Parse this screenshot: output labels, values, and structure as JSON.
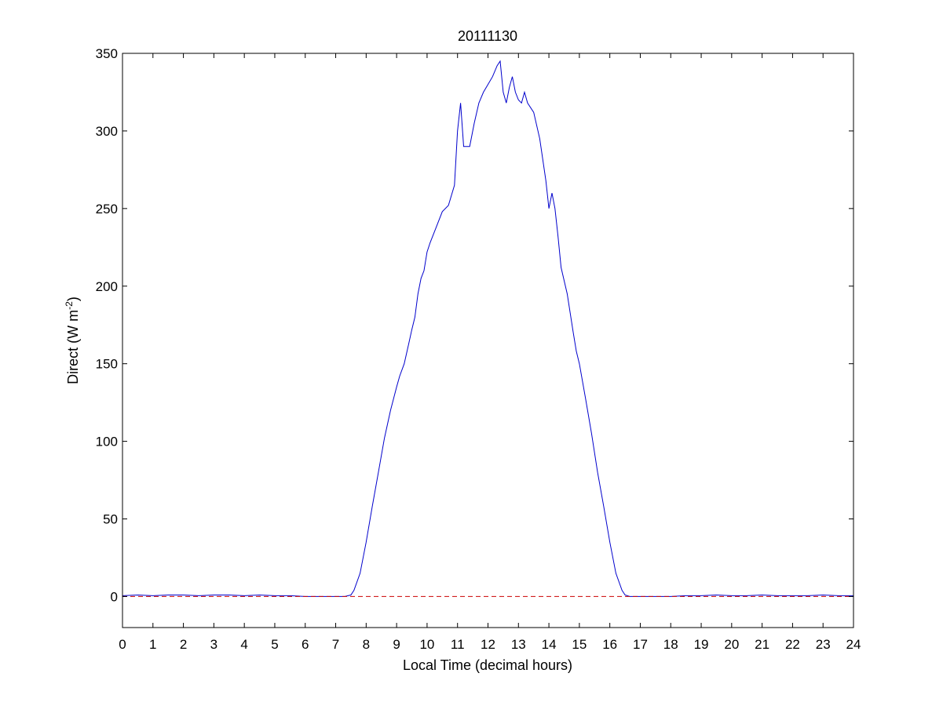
{
  "chart_data": {
    "type": "line",
    "title": "20111130",
    "xlabel": "Local Time (decimal hours)",
    "ylabel": {
      "text": "Direct (W m",
      "superscript": "-2",
      "suffix": ")"
    },
    "xlim": [
      0,
      24
    ],
    "ylim": [
      -20,
      350
    ],
    "xticks": [
      0,
      1,
      2,
      3,
      4,
      5,
      6,
      7,
      8,
      9,
      10,
      11,
      12,
      13,
      14,
      15,
      16,
      17,
      18,
      19,
      20,
      21,
      22,
      23,
      24
    ],
    "yticks": [
      0,
      50,
      100,
      150,
      200,
      250,
      300,
      350
    ],
    "grid": false,
    "legend": "none",
    "series": [
      {
        "color": "#0000cc",
        "line_style": "solid",
        "x": [
          0,
          0.5,
          1,
          1.5,
          2,
          2.5,
          3,
          3.5,
          4,
          4.5,
          5,
          5.5,
          6,
          6.5,
          7,
          7.3,
          7.5,
          7.6,
          7.8,
          8,
          8.2,
          8.4,
          8.6,
          8.8,
          9,
          9.1,
          9.25,
          9.4,
          9.5,
          9.6,
          9.7,
          9.8,
          9.9,
          10,
          10.1,
          10.3,
          10.5,
          10.7,
          10.9,
          11,
          11.1,
          11.2,
          11.4,
          11.55,
          11.7,
          11.85,
          12,
          12.15,
          12.3,
          12.4,
          12.5,
          12.6,
          12.7,
          12.8,
          12.9,
          13,
          13.1,
          13.2,
          13.3,
          13.5,
          13.7,
          13.9,
          14,
          14.1,
          14.2,
          14.3,
          14.4,
          14.6,
          14.8,
          14.9,
          15,
          15.2,
          15.4,
          15.6,
          15.8,
          16,
          16.2,
          16.4,
          16.5,
          16.65,
          17,
          17.5,
          18,
          18.5,
          19,
          19.5,
          20,
          20.5,
          21,
          21.5,
          22,
          22.5,
          23,
          23.5,
          24
        ],
        "y": [
          0.5,
          1,
          0.5,
          1,
          1,
          0.5,
          1,
          1,
          0.5,
          1,
          0.5,
          0.5,
          0,
          0,
          0,
          0,
          1,
          4,
          15,
          35,
          58,
          80,
          102,
          120,
          135,
          142,
          150,
          163,
          172,
          180,
          195,
          205,
          210,
          222,
          228,
          238,
          248,
          252,
          265,
          300,
          318,
          290,
          290,
          305,
          318,
          325,
          330,
          335,
          342,
          345,
          325,
          318,
          328,
          335,
          325,
          320,
          318,
          325,
          318,
          312,
          295,
          268,
          250,
          260,
          250,
          232,
          212,
          195,
          170,
          158,
          150,
          128,
          105,
          80,
          58,
          35,
          15,
          4,
          1,
          0,
          0,
          0,
          0,
          0.5,
          0.5,
          1,
          0.5,
          0.5,
          1,
          0.5,
          0.5,
          0.5,
          1,
          0.5,
          0.5
        ]
      },
      {
        "color": "#cc0000",
        "line_style": "dashed",
        "x": [
          0,
          24
        ],
        "y": [
          0,
          0
        ]
      }
    ]
  }
}
